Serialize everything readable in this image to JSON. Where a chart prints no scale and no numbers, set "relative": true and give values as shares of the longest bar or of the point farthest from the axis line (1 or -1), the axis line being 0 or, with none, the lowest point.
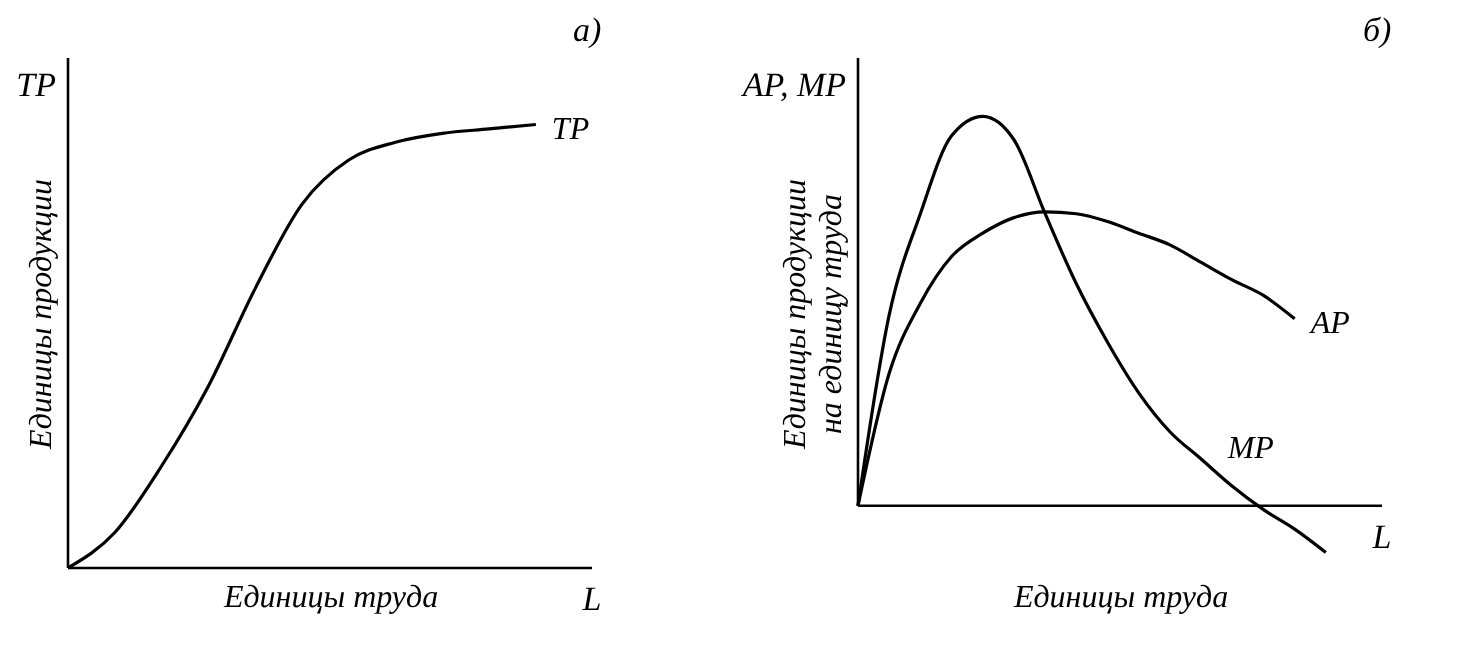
{
  "chart_data": [
    {
      "type": "line",
      "title": "а)",
      "xlabel": "Единицы труда",
      "ylabel": "Единицы продукции",
      "relative": true,
      "grid": false,
      "legend": false,
      "annotations": [
        "TP",
        "L"
      ],
      "categories": [
        null,
        null,
        null,
        null,
        null,
        null,
        null,
        null,
        null,
        null,
        null
      ],
      "series": [
        {
          "name": "TP",
          "color": "#000000",
          "values": [
            0,
            0.08,
            0.23,
            0.41,
            0.63,
            0.82,
            0.92,
            0.96,
            0.98,
            0.99,
            1.0
          ]
        }
      ]
    },
    {
      "type": "line",
      "title": "б)",
      "xlabel": "Единицы труда",
      "ylabel": "Единицы продукции\nна единицу труда",
      "relative": true,
      "grid": false,
      "legend": false,
      "annotations": [
        "AP, MP",
        "L"
      ],
      "categories": [
        null,
        null,
        null,
        null,
        null,
        null,
        null,
        null,
        null,
        null,
        null,
        null,
        null,
        null,
        null,
        null
      ],
      "series": [
        {
          "name": "AP",
          "color": "#000000",
          "values": [
            0,
            0.34,
            0.52,
            0.64,
            0.7,
            0.74,
            0.755,
            0.75,
            0.73,
            0.7,
            0.67,
            0.625,
            0.58,
            0.54,
            0.48,
            null
          ]
        },
        {
          "name": "MP",
          "color": "#000000",
          "values": [
            0,
            0.49,
            0.75,
            0.95,
            1.0,
            0.94,
            0.75,
            0.57,
            0.42,
            0.29,
            0.19,
            0.12,
            0.05,
            -0.01,
            -0.06,
            -0.12
          ]
        }
      ]
    }
  ]
}
